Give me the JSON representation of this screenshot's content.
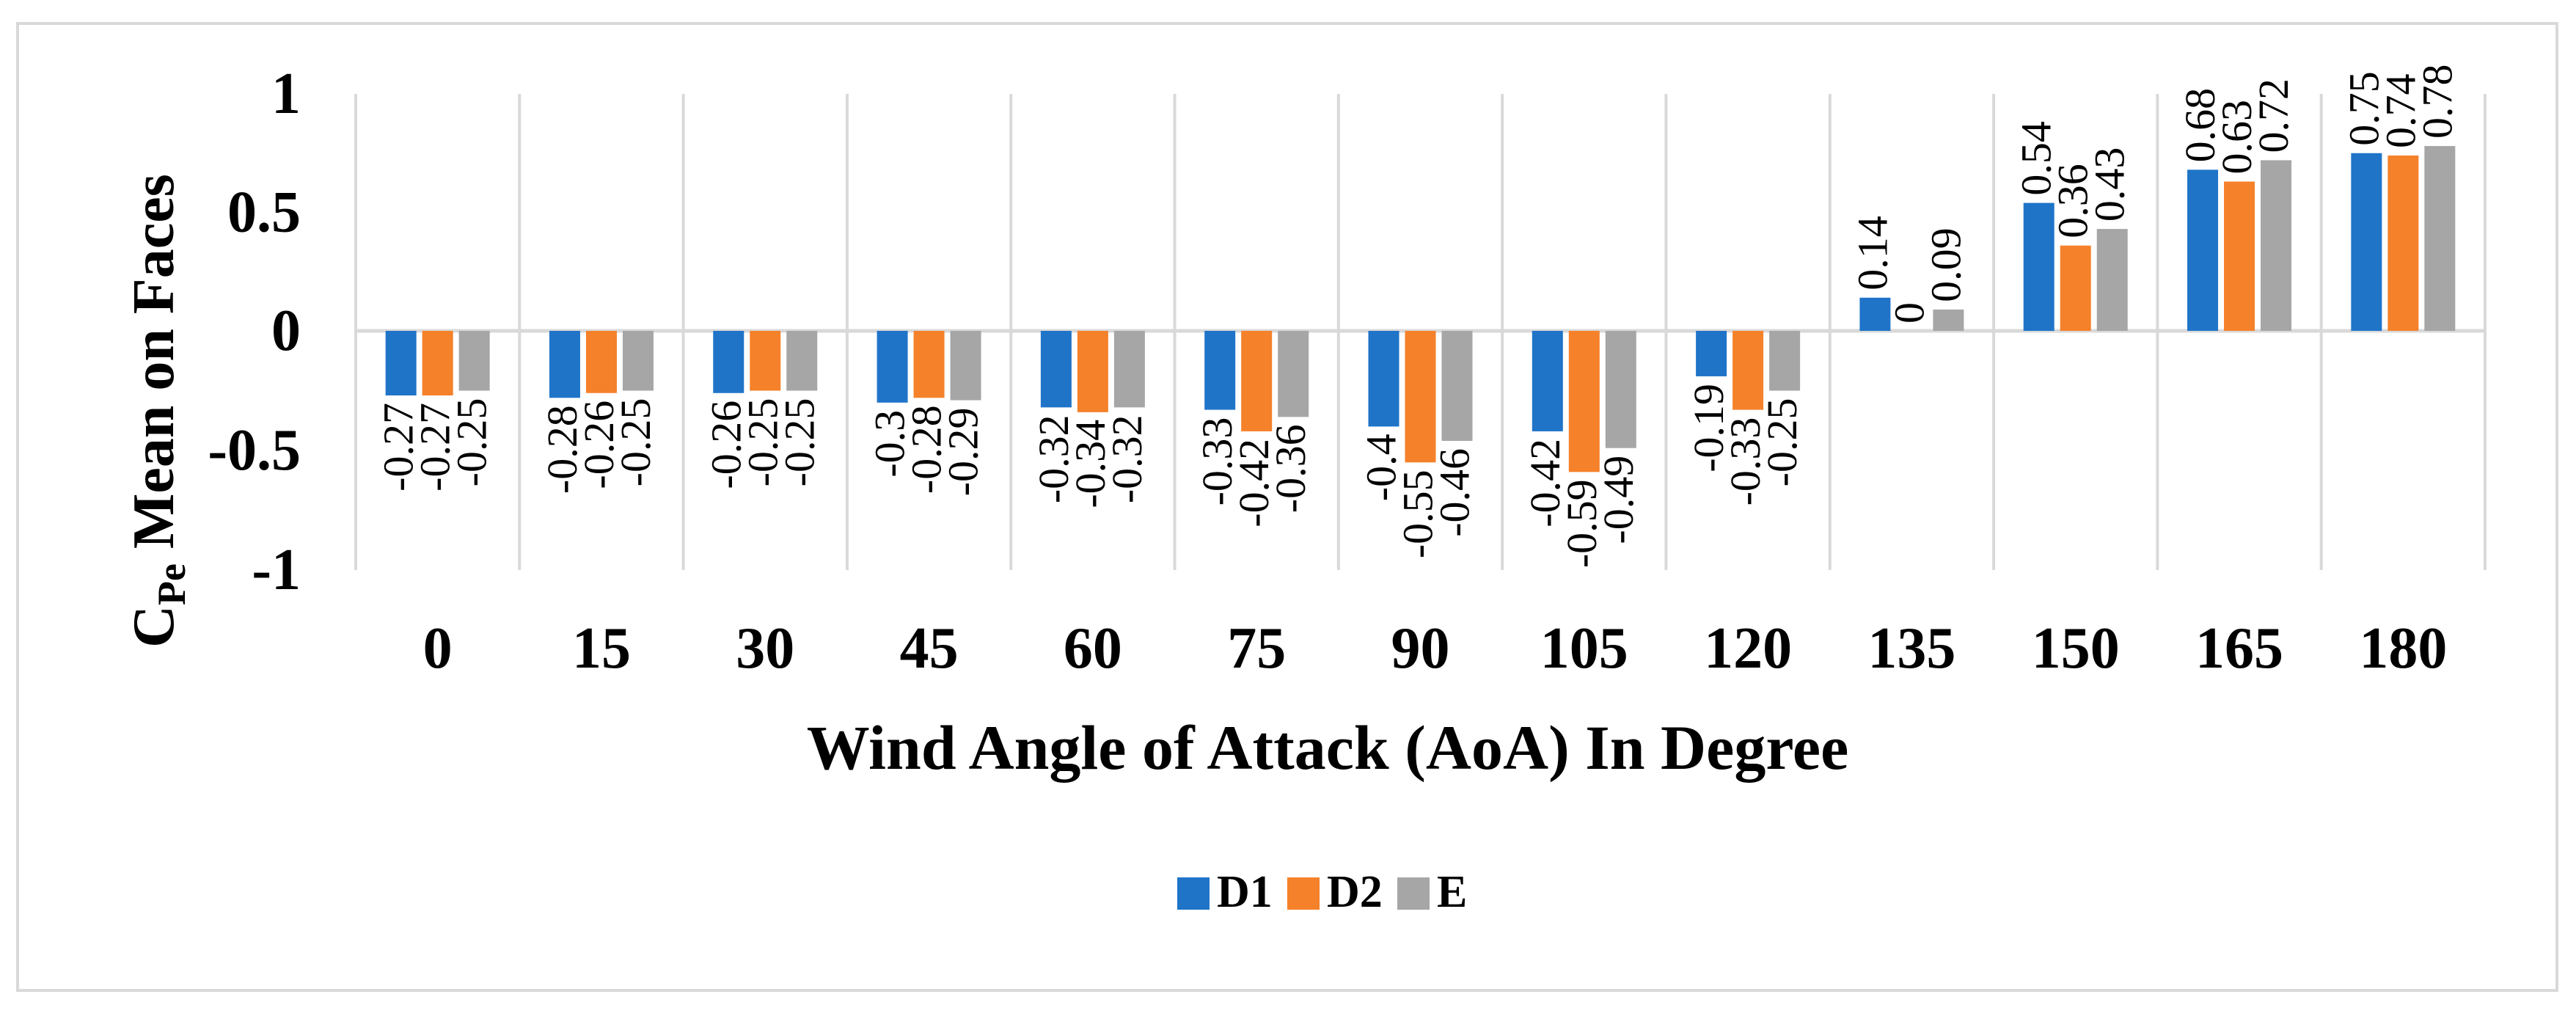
{
  "chart_data": {
    "type": "bar",
    "title": "",
    "xlabel": "Wind Angle of Attack (AoA) In Degree",
    "ylabel_main": "C",
    "ylabel_sub": "Pe",
    "ylabel_rest": " Mean on Faces",
    "ylim": [
      -1,
      1
    ],
    "yticks": [
      {
        "value": 1,
        "label": "1"
      },
      {
        "value": 0.5,
        "label": "0.5"
      },
      {
        "value": 0,
        "label": "0"
      },
      {
        "value": -0.5,
        "label": "-0.5"
      },
      {
        "value": -1,
        "label": "-1"
      }
    ],
    "categories": [
      "0",
      "15",
      "30",
      "45",
      "60",
      "75",
      "90",
      "105",
      "120",
      "135",
      "150",
      "165",
      "180"
    ],
    "series": [
      {
        "name": "D1",
        "color": "#1f74c8",
        "values": [
          -0.27,
          -0.28,
          -0.26,
          -0.3,
          -0.32,
          -0.33,
          -0.4,
          -0.42,
          -0.19,
          0.14,
          0.54,
          0.68,
          0.75
        ],
        "labels": [
          "-0.27",
          "-0.28",
          "-0.26",
          "-0.3",
          "-0.32",
          "-0.33",
          "-0.4",
          "-0.42",
          "-0.19",
          "0.14",
          "0.54",
          "0.68",
          "0.75"
        ]
      },
      {
        "name": "D2",
        "color": "#f5812a",
        "values": [
          -0.27,
          -0.26,
          -0.25,
          -0.28,
          -0.34,
          -0.42,
          -0.55,
          -0.59,
          -0.33,
          0,
          0.36,
          0.63,
          0.74
        ],
        "labels": [
          "-0.27",
          "-0.26",
          "-0.25",
          "-0.28",
          "-0.34",
          "-0.42",
          "-0.55",
          "-0.59",
          "-0.33",
          "0",
          "0.36",
          "0.63",
          "0.74"
        ]
      },
      {
        "name": "E",
        "color": "#a6a6a6",
        "values": [
          -0.25,
          -0.25,
          -0.25,
          -0.29,
          -0.32,
          -0.36,
          -0.46,
          -0.49,
          -0.25,
          0.09,
          0.43,
          0.72,
          0.78
        ],
        "labels": [
          "-0.25",
          "-0.25",
          "-0.25",
          "-0.29",
          "-0.32",
          "-0.36",
          "-0.46",
          "-0.49",
          "-0.25",
          "0.09",
          "0.43",
          "0.72",
          "0.78"
        ]
      }
    ],
    "grid": true,
    "legend": "bottom-center",
    "gridline_color": "#d9d9d9",
    "data_label_orientation": "rotated-vertical"
  }
}
